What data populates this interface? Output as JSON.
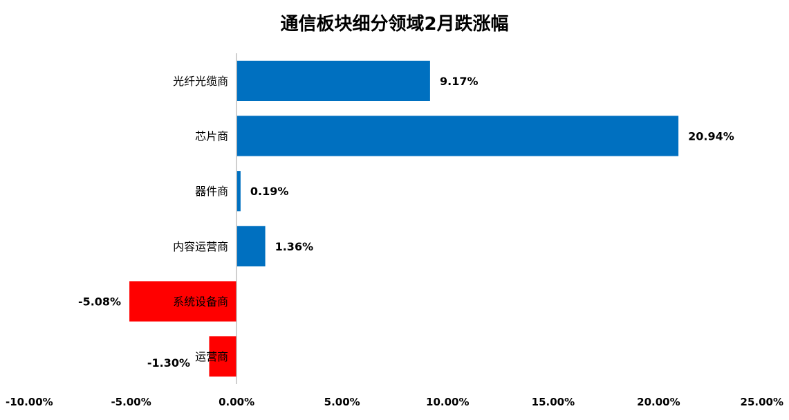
{
  "chart_data": {
    "type": "bar",
    "orientation": "horizontal",
    "title": "通信板块细分领域2月跌涨幅",
    "categories": [
      "光纤光缆商",
      "芯片商",
      "器件商",
      "内容运营商",
      "系统设备商",
      "运营商"
    ],
    "values": [
      9.17,
      20.94,
      0.19,
      1.36,
      -5.08,
      -1.3
    ],
    "value_labels": [
      "9.17%",
      "20.94%",
      "0.19%",
      "1.36%",
      "-5.08%",
      "-1.30%"
    ],
    "xlim": [
      -10,
      25
    ],
    "x_ticks": [
      -10,
      -5,
      0,
      5,
      10,
      15,
      20,
      25
    ],
    "x_tick_labels": [
      "-10.00%",
      "-5.00%",
      "0.00%",
      "5.00%",
      "10.00%",
      "15.00%",
      "20.00%",
      "25.00%"
    ],
    "grid": false,
    "legend": "none",
    "colors": {
      "positive": "#0070C0",
      "negative": "#FF0000",
      "axis": "#BFBFBF"
    }
  }
}
